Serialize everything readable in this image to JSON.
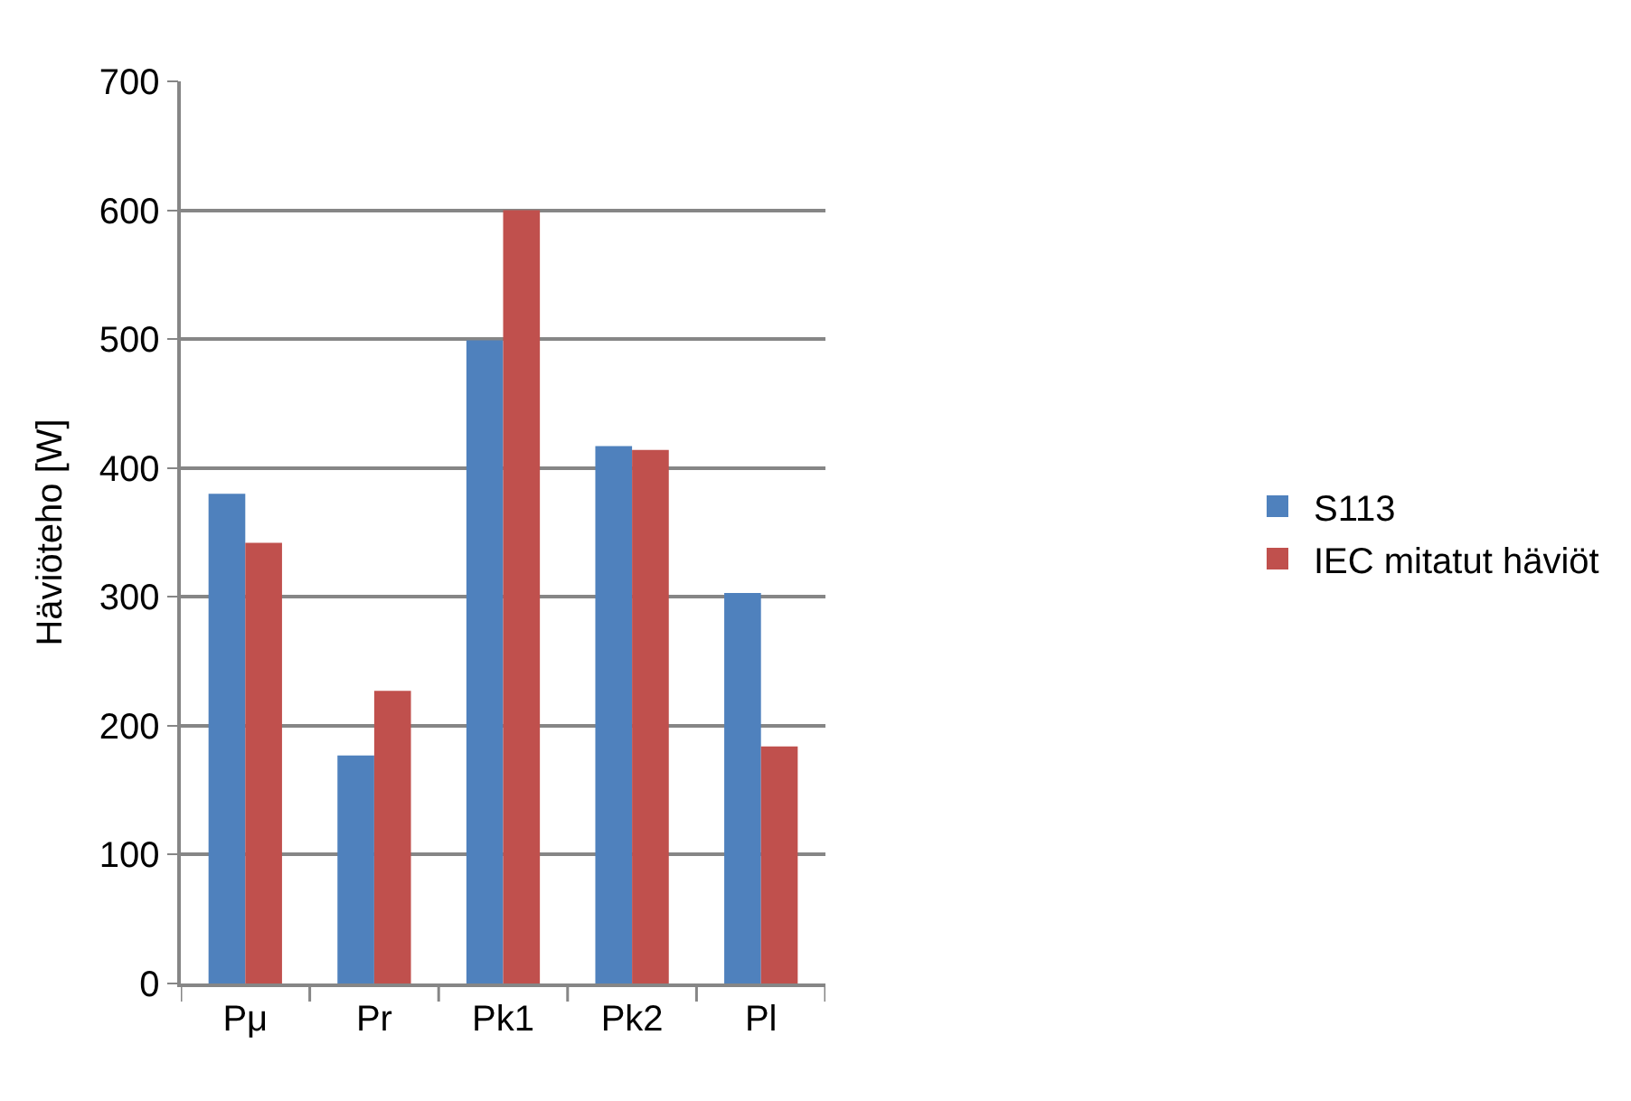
{
  "chart_data": {
    "type": "bar",
    "ylabel": "Häviöteho [W]",
    "categories": [
      "Pμ",
      "Pr",
      "Pk1",
      "Pk2",
      "Pl"
    ],
    "series": [
      {
        "name": "S113",
        "color": "#4f81bd",
        "values": [
          380,
          177,
          499,
          417,
          303
        ]
      },
      {
        "name": "IEC mitatut häviöt",
        "color": "#c0504d",
        "values": [
          342,
          227,
          600,
          414,
          184
        ]
      }
    ],
    "ylim": [
      0,
      700
    ],
    "yticks": [
      0,
      100,
      200,
      300,
      400,
      500,
      600,
      700
    ],
    "grid": "y",
    "legend": "right"
  }
}
